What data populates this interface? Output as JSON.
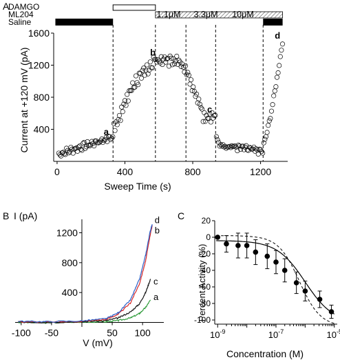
{
  "colors": {
    "axis": "#000000",
    "concentration_text": "#3a6fb5",
    "trace_a": "#2e9b3a",
    "trace_b": "#d62828",
    "trace_c": "#111111",
    "trace_d": "#2b5fc7"
  },
  "chart_data": [
    {
      "panel": "A",
      "type": "scatter",
      "xlabel": "Sweep Time (s)",
      "ylabel": "Current at +120 mV (pA)",
      "xlim": [
        -20,
        1360
      ],
      "ylim": [
        0,
        1600
      ],
      "xticks": [
        0,
        400,
        800,
        1200
      ],
      "yticks": [
        400,
        800,
        1200,
        1600
      ],
      "bars": [
        {
          "label": "Saline",
          "segments": [
            [
              -10,
              330
            ],
            [
              1215,
              1330
            ]
          ],
          "style": "solid"
        },
        {
          "label": "ML204",
          "segments": [
            [
              580,
              1330
            ]
          ],
          "style": "hatched"
        },
        {
          "label": "DAMGO",
          "segments": [
            [
              330,
              580
            ]
          ],
          "style": "open"
        }
      ],
      "concentrations": [
        "1.1μM",
        "3.3μM",
        "10μM"
      ],
      "vlines": [
        330,
        580,
        760,
        935,
        1215
      ],
      "annotations": [
        {
          "text": "a",
          "x": 290,
          "y": 330
        },
        {
          "text": "b",
          "x": 565,
          "y": 1320
        },
        {
          "text": "c",
          "x": 900,
          "y": 610
        },
        {
          "text": "d",
          "x": 1300,
          "y": 1530
        }
      ],
      "x_range_points": [
        10,
        1330
      ]
    },
    {
      "panel": "B",
      "type": "line",
      "xlabel": "V (mV)",
      "ylabel": "I (pA)",
      "xlim": [
        -110,
        135
      ],
      "ylim": [
        -60,
        1380
      ],
      "xticks": [
        -100,
        -50,
        50,
        100
      ],
      "yticks": [
        400,
        800,
        1200
      ],
      "series": [
        {
          "name": "a",
          "points": [
            [
              -105,
              0
            ],
            [
              -60,
              -5
            ],
            [
              0,
              5
            ],
            [
              40,
              10
            ],
            [
              60,
              25
            ],
            [
              80,
              60
            ],
            [
              95,
              120
            ],
            [
              105,
              200
            ],
            [
              113,
              300
            ]
          ],
          "label_at": [
            118,
            300
          ]
        },
        {
          "name": "c",
          "points": [
            [
              -105,
              5
            ],
            [
              -60,
              0
            ],
            [
              0,
              10
            ],
            [
              40,
              25
            ],
            [
              60,
              60
            ],
            [
              80,
              140
            ],
            [
              95,
              250
            ],
            [
              105,
              400
            ],
            [
              113,
              580
            ]
          ],
          "label_at": [
            118,
            510
          ]
        },
        {
          "name": "b",
          "points": [
            [
              -105,
              10
            ],
            [
              -60,
              5
            ],
            [
              0,
              15
            ],
            [
              40,
              40
            ],
            [
              60,
              110
            ],
            [
              80,
              260
            ],
            [
              95,
              520
            ],
            [
              105,
              820
            ],
            [
              112,
              1150
            ],
            [
              116,
              1300
            ]
          ],
          "label_at": [
            120,
            1190
          ]
        },
        {
          "name": "d",
          "points": [
            [
              -105,
              15
            ],
            [
              -60,
              10
            ],
            [
              0,
              20
            ],
            [
              40,
              50
            ],
            [
              60,
              130
            ],
            [
              80,
              300
            ],
            [
              95,
              580
            ],
            [
              105,
              900
            ],
            [
              112,
              1200
            ],
            [
              116,
              1320
            ]
          ],
          "label_at": [
            120,
            1330
          ]
        }
      ]
    },
    {
      "panel": "C",
      "type": "line",
      "xlabel": "Concentration (M)",
      "ylabel": "Percent Activity (%)",
      "xscale": "log",
      "xlim": [
        -9.1,
        -4.9
      ],
      "ylim": [
        -105,
        20
      ],
      "xticks": [
        -9,
        -7,
        -5
      ],
      "xticklabels": [
        "10-9",
        "10-7",
        "10-5"
      ],
      "yticks": [
        20,
        0,
        -20,
        -40,
        -60,
        -80,
        -100
      ],
      "series": [
        {
          "name": "data",
          "x": [
            -9,
            -8.7,
            -8.3,
            -8,
            -7.7,
            -7.3,
            -7,
            -6.7,
            -6.3,
            -6,
            -5.5,
            -5.1
          ],
          "y": [
            0,
            -8,
            -10,
            -10,
            -18,
            -23,
            -30,
            -40,
            -55,
            -65,
            -75,
            -90
          ],
          "err": [
            0,
            10,
            15,
            15,
            15,
            15,
            14,
            14,
            13,
            12,
            10,
            8
          ],
          "style": "markers"
        },
        {
          "name": "fit",
          "style": "solid"
        },
        {
          "name": "fit-dashed",
          "style": "dashed"
        }
      ]
    }
  ],
  "labels": {
    "A": "A",
    "B": "B",
    "C": "C"
  }
}
